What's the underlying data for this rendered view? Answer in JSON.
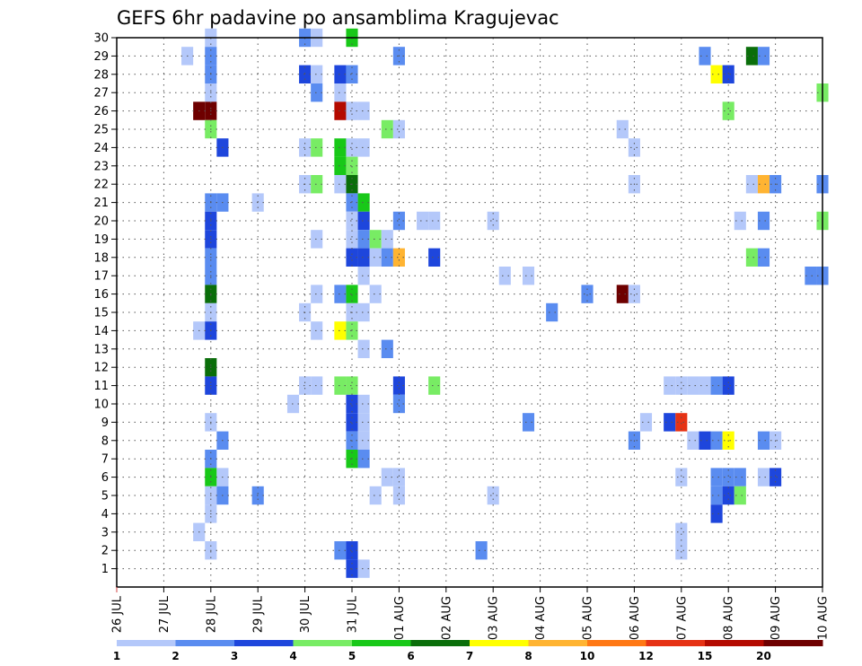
{
  "chart_data": {
    "type": "heatmap",
    "title": "GEFS 6hr padavine po ansamblima Kragujevac",
    "x_ticks": [
      "26 JUL",
      "27 JUL",
      "28 JUL",
      "29 JUL",
      "30 JUL",
      "31 JUL",
      "01 AUG",
      "02 AUG",
      "03 AUG",
      "04 AUG",
      "05 AUG",
      "06 AUG",
      "07 AUG",
      "08 AUG",
      "09 AUG",
      "10 AUG"
    ],
    "y_ticks": [
      "1",
      "2",
      "3",
      "4",
      "5",
      "6",
      "7",
      "8",
      "9",
      "10",
      "11",
      "12",
      "13",
      "14",
      "15",
      "16",
      "17",
      "18",
      "19",
      "20",
      "21",
      "22",
      "23",
      "24",
      "25",
      "26",
      "27",
      "28",
      "29",
      "30"
    ],
    "y_range": [
      0,
      30
    ],
    "x_range_days": [
      0,
      15
    ],
    "grid": true,
    "time_step_hours": 6,
    "colorbar": {
      "labels": [
        "1",
        "2",
        "3",
        "4",
        "5",
        "6",
        "7",
        "8",
        "10",
        "12",
        "15",
        "20"
      ],
      "colors": [
        "#b4c8fa",
        "#5a8cf0",
        "#1e46dc",
        "#78ec64",
        "#18c818",
        "#0a6e0a",
        "#ffff00",
        "#ffb432",
        "#ff7814",
        "#e63214",
        "#b40a00",
        "#6e0000"
      ]
    },
    "cells": [
      [
        30,
        2.0,
        "#b4c8fa"
      ],
      [
        30,
        4.0,
        "#5a8cf0"
      ],
      [
        30,
        4.25,
        "#b4c8fa"
      ],
      [
        30,
        5.0,
        "#18c818"
      ],
      [
        29,
        1.5,
        "#b4c8fa"
      ],
      [
        29,
        2.0,
        "#5a8cf0"
      ],
      [
        29,
        6.0,
        "#5a8cf0"
      ],
      [
        29,
        12.5,
        "#5a8cf0"
      ],
      [
        29,
        13.5,
        "#0a6e0a"
      ],
      [
        29,
        13.75,
        "#5a8cf0"
      ],
      [
        28,
        2.0,
        "#5a8cf0"
      ],
      [
        28,
        4.0,
        "#1e46dc"
      ],
      [
        28,
        4.25,
        "#b4c8fa"
      ],
      [
        28,
        4.75,
        "#1e46dc"
      ],
      [
        28,
        5.0,
        "#5a8cf0"
      ],
      [
        28,
        12.75,
        "#ffff00"
      ],
      [
        28,
        13.0,
        "#1e46dc"
      ],
      [
        27,
        2.0,
        "#b4c8fa"
      ],
      [
        27,
        4.25,
        "#5a8cf0"
      ],
      [
        27,
        4.75,
        "#b4c8fa"
      ],
      [
        27,
        15.0,
        "#78ec64"
      ],
      [
        26,
        1.75,
        "#6e0000"
      ],
      [
        26,
        2.0,
        "#6e0000"
      ],
      [
        26,
        4.75,
        "#b40a00"
      ],
      [
        26,
        5.0,
        "#b4c8fa"
      ],
      [
        26,
        5.25,
        "#b4c8fa"
      ],
      [
        26,
        13.0,
        "#78ec64"
      ],
      [
        25,
        2.0,
        "#78ec64"
      ],
      [
        25,
        5.75,
        "#78ec64"
      ],
      [
        25,
        6.0,
        "#b4c8fa"
      ],
      [
        25,
        10.75,
        "#b4c8fa"
      ],
      [
        24,
        2.25,
        "#1e46dc"
      ],
      [
        24,
        4.0,
        "#b4c8fa"
      ],
      [
        24,
        4.25,
        "#78ec64"
      ],
      [
        24,
        4.75,
        "#18c818"
      ],
      [
        24,
        5.0,
        "#b4c8fa"
      ],
      [
        24,
        5.25,
        "#b4c8fa"
      ],
      [
        24,
        11.0,
        "#b4c8fa"
      ],
      [
        23,
        4.75,
        "#18c818"
      ],
      [
        23,
        5.0,
        "#78ec64"
      ],
      [
        22,
        4.0,
        "#b4c8fa"
      ],
      [
        22,
        4.25,
        "#78ec64"
      ],
      [
        22,
        4.75,
        "#b4c8fa"
      ],
      [
        22,
        5.0,
        "#0a6e0a"
      ],
      [
        22,
        11.0,
        "#b4c8fa"
      ],
      [
        22,
        13.5,
        "#b4c8fa"
      ],
      [
        22,
        13.75,
        "#ffb432"
      ],
      [
        22,
        14.0,
        "#5a8cf0"
      ],
      [
        22,
        15.0,
        "#5a8cf0"
      ],
      [
        21,
        2.0,
        "#5a8cf0"
      ],
      [
        21,
        2.25,
        "#5a8cf0"
      ],
      [
        21,
        3.0,
        "#b4c8fa"
      ],
      [
        21,
        5.0,
        "#5a8cf0"
      ],
      [
        21,
        5.25,
        "#18c818"
      ],
      [
        20,
        2.0,
        "#1e46dc"
      ],
      [
        20,
        5.0,
        "#b4c8fa"
      ],
      [
        20,
        5.25,
        "#1e46dc"
      ],
      [
        20,
        6.0,
        "#5a8cf0"
      ],
      [
        20,
        6.5,
        "#b4c8fa"
      ],
      [
        20,
        6.75,
        "#b4c8fa"
      ],
      [
        20,
        8.0,
        "#b4c8fa"
      ],
      [
        20,
        13.25,
        "#b4c8fa"
      ],
      [
        20,
        13.75,
        "#5a8cf0"
      ],
      [
        20,
        15.0,
        "#78ec64"
      ],
      [
        19,
        2.0,
        "#1e46dc"
      ],
      [
        19,
        4.25,
        "#b4c8fa"
      ],
      [
        19,
        5.0,
        "#b4c8fa"
      ],
      [
        19,
        5.25,
        "#5a8cf0"
      ],
      [
        19,
        5.5,
        "#78ec64"
      ],
      [
        19,
        5.75,
        "#b4c8fa"
      ],
      [
        18,
        2.0,
        "#5a8cf0"
      ],
      [
        18,
        5.0,
        "#1e46dc"
      ],
      [
        18,
        5.25,
        "#1e46dc"
      ],
      [
        18,
        5.5,
        "#b4c8fa"
      ],
      [
        18,
        5.75,
        "#5a8cf0"
      ],
      [
        18,
        6.0,
        "#ffb432"
      ],
      [
        18,
        6.75,
        "#1e46dc"
      ],
      [
        18,
        13.5,
        "#78ec64"
      ],
      [
        18,
        13.75,
        "#5a8cf0"
      ],
      [
        17,
        2.0,
        "#5a8cf0"
      ],
      [
        17,
        5.25,
        "#b4c8fa"
      ],
      [
        17,
        8.25,
        "#b4c8fa"
      ],
      [
        17,
        8.75,
        "#b4c8fa"
      ],
      [
        17,
        14.75,
        "#5a8cf0"
      ],
      [
        17,
        15.0,
        "#5a8cf0"
      ],
      [
        16,
        2.0,
        "#0a6e0a"
      ],
      [
        16,
        4.25,
        "#b4c8fa"
      ],
      [
        16,
        4.75,
        "#5a8cf0"
      ],
      [
        16,
        5.0,
        "#18c818"
      ],
      [
        16,
        5.5,
        "#b4c8fa"
      ],
      [
        16,
        10.0,
        "#5a8cf0"
      ],
      [
        16,
        10.75,
        "#6e0000"
      ],
      [
        16,
        11.0,
        "#b4c8fa"
      ],
      [
        15,
        2.0,
        "#b4c8fa"
      ],
      [
        15,
        4.0,
        "#b4c8fa"
      ],
      [
        15,
        5.0,
        "#b4c8fa"
      ],
      [
        15,
        5.25,
        "#b4c8fa"
      ],
      [
        15,
        9.25,
        "#5a8cf0"
      ],
      [
        14,
        1.75,
        "#b4c8fa"
      ],
      [
        14,
        2.0,
        "#1e46dc"
      ],
      [
        14,
        4.25,
        "#b4c8fa"
      ],
      [
        14,
        4.75,
        "#ffff00"
      ],
      [
        14,
        5.0,
        "#78ec64"
      ],
      [
        13,
        5.25,
        "#b4c8fa"
      ],
      [
        13,
        5.75,
        "#5a8cf0"
      ],
      [
        12,
        2.0,
        "#0a6e0a"
      ],
      [
        11,
        2.0,
        "#1e46dc"
      ],
      [
        11,
        4.0,
        "#b4c8fa"
      ],
      [
        11,
        4.25,
        "#b4c8fa"
      ],
      [
        11,
        4.75,
        "#78ec64"
      ],
      [
        11,
        5.0,
        "#78ec64"
      ],
      [
        11,
        6.0,
        "#1e46dc"
      ],
      [
        11,
        6.75,
        "#78ec64"
      ],
      [
        11,
        11.75,
        "#b4c8fa"
      ],
      [
        11,
        12.0,
        "#b4c8fa"
      ],
      [
        11,
        12.25,
        "#b4c8fa"
      ],
      [
        11,
        12.5,
        "#b4c8fa"
      ],
      [
        11,
        12.75,
        "#5a8cf0"
      ],
      [
        11,
        13.0,
        "#1e46dc"
      ],
      [
        10,
        3.75,
        "#b4c8fa"
      ],
      [
        10,
        5.0,
        "#1e46dc"
      ],
      [
        10,
        5.25,
        "#b4c8fa"
      ],
      [
        10,
        6.0,
        "#5a8cf0"
      ],
      [
        9,
        2.0,
        "#b4c8fa"
      ],
      [
        9,
        5.0,
        "#1e46dc"
      ],
      [
        9,
        5.25,
        "#b4c8fa"
      ],
      [
        9,
        8.75,
        "#5a8cf0"
      ],
      [
        9,
        11.25,
        "#b4c8fa"
      ],
      [
        9,
        11.75,
        "#1e46dc"
      ],
      [
        9,
        12.0,
        "#e63214"
      ],
      [
        8,
        2.25,
        "#5a8cf0"
      ],
      [
        8,
        5.0,
        "#5a8cf0"
      ],
      [
        8,
        5.25,
        "#b4c8fa"
      ],
      [
        8,
        11.0,
        "#5a8cf0"
      ],
      [
        8,
        12.25,
        "#b4c8fa"
      ],
      [
        8,
        12.5,
        "#1e46dc"
      ],
      [
        8,
        12.75,
        "#5a8cf0"
      ],
      [
        8,
        13.0,
        "#ffff00"
      ],
      [
        8,
        13.75,
        "#5a8cf0"
      ],
      [
        8,
        14.0,
        "#b4c8fa"
      ],
      [
        7,
        2.0,
        "#5a8cf0"
      ],
      [
        7,
        5.0,
        "#18c818"
      ],
      [
        7,
        5.25,
        "#5a8cf0"
      ],
      [
        6,
        2.0,
        "#18c818"
      ],
      [
        6,
        2.25,
        "#b4c8fa"
      ],
      [
        6,
        5.75,
        "#b4c8fa"
      ],
      [
        6,
        6.0,
        "#b4c8fa"
      ],
      [
        6,
        12.0,
        "#b4c8fa"
      ],
      [
        6,
        12.75,
        "#5a8cf0"
      ],
      [
        6,
        13.0,
        "#5a8cf0"
      ],
      [
        6,
        13.25,
        "#5a8cf0"
      ],
      [
        6,
        13.75,
        "#b4c8fa"
      ],
      [
        6,
        14.0,
        "#1e46dc"
      ],
      [
        5,
        2.0,
        "#b4c8fa"
      ],
      [
        5,
        2.25,
        "#5a8cf0"
      ],
      [
        5,
        3.0,
        "#5a8cf0"
      ],
      [
        5,
        5.5,
        "#b4c8fa"
      ],
      [
        5,
        6.0,
        "#b4c8fa"
      ],
      [
        5,
        8.0,
        "#b4c8fa"
      ],
      [
        5,
        12.75,
        "#5a8cf0"
      ],
      [
        5,
        13.0,
        "#1e46dc"
      ],
      [
        5,
        13.25,
        "#78ec64"
      ],
      [
        4,
        2.0,
        "#b4c8fa"
      ],
      [
        4,
        12.75,
        "#1e46dc"
      ],
      [
        3,
        1.75,
        "#b4c8fa"
      ],
      [
        3,
        12.0,
        "#b4c8fa"
      ],
      [
        2,
        2.0,
        "#b4c8fa"
      ],
      [
        2,
        4.75,
        "#5a8cf0"
      ],
      [
        2,
        5.0,
        "#1e46dc"
      ],
      [
        2,
        7.75,
        "#5a8cf0"
      ],
      [
        2,
        12.0,
        "#b4c8fa"
      ],
      [
        1,
        5.0,
        "#1e46dc"
      ],
      [
        1,
        5.25,
        "#b4c8fa"
      ]
    ]
  }
}
